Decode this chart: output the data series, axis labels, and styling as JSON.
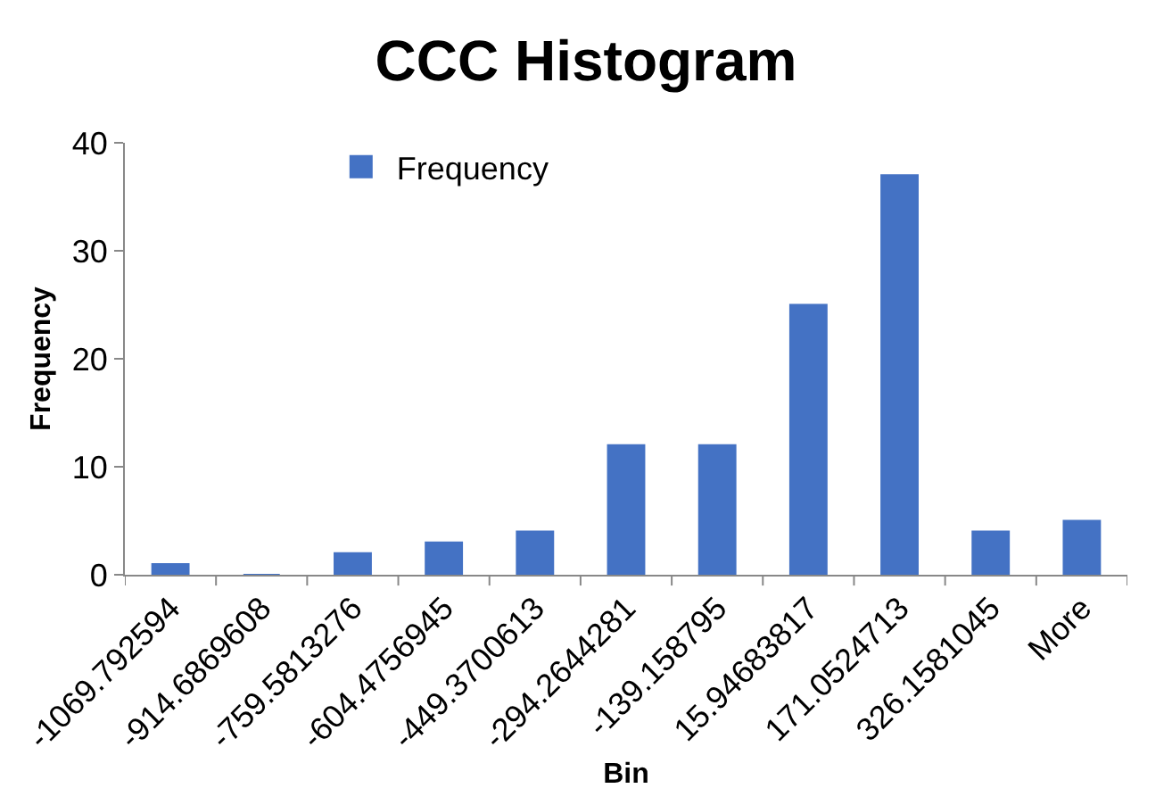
{
  "chart_data": {
    "type": "bar",
    "title": "CCC Histogram",
    "xlabel": "Bin",
    "ylabel": "Frequency",
    "categories": [
      "-1069.792594",
      "-914.6869608",
      "-759.5813276",
      "-604.4756945",
      "-449.3700613",
      "-294.2644281",
      "-139.158795",
      "15.94683817",
      "171.0524713",
      "326.1581045",
      "More"
    ],
    "series": [
      {
        "name": "Frequency",
        "color": "#4472c4",
        "values": [
          1,
          0,
          2,
          3,
          4,
          12,
          12,
          25,
          37,
          4,
          5
        ]
      }
    ],
    "ylim": [
      0,
      40
    ],
    "yticks": [
      0,
      10,
      20,
      30,
      40
    ],
    "legend": "top left"
  }
}
